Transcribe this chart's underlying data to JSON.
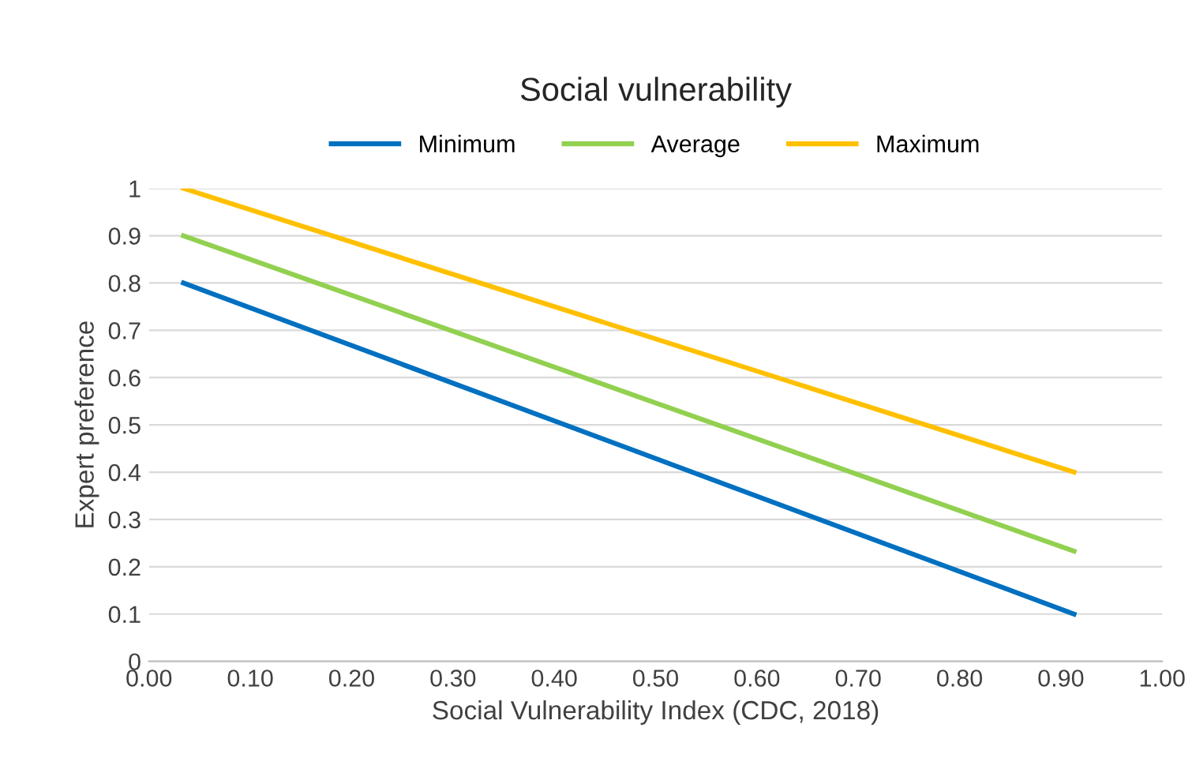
{
  "chart_data": {
    "type": "line",
    "title": "Social vulnerability",
    "xlabel": "Social Vulnerability Index (CDC, 2018)",
    "ylabel": "Expert preference",
    "x": [
      0.034,
      0.913
    ],
    "series": [
      {
        "name": "Minimum",
        "color": "#0070c0",
        "values": [
          0.8,
          0.1
        ]
      },
      {
        "name": "Average",
        "color": "#92d050",
        "values": [
          0.9,
          0.233
        ]
      },
      {
        "name": "Maximum",
        "color": "#ffc000",
        "values": [
          1.0,
          0.4
        ]
      }
    ],
    "xlim": [
      0,
      1
    ],
    "xticks": [
      {
        "value": 0,
        "label": "0.00"
      },
      {
        "value": 0.1,
        "label": "0.10"
      },
      {
        "value": 0.2,
        "label": "0.20"
      },
      {
        "value": 0.3,
        "label": "0.30"
      },
      {
        "value": 0.4,
        "label": "0.40"
      },
      {
        "value": 0.5,
        "label": "0.50"
      },
      {
        "value": 0.6,
        "label": "0.60"
      },
      {
        "value": 0.7,
        "label": "0.70"
      },
      {
        "value": 0.8,
        "label": "0.80"
      },
      {
        "value": 0.9,
        "label": "0.90"
      },
      {
        "value": 1,
        "label": "1.00"
      }
    ],
    "ylim": [
      0,
      1
    ],
    "yticks": [
      0,
      0.1,
      0.2,
      0.3,
      0.4,
      0.5,
      0.6,
      0.7,
      0.8,
      0.9,
      1
    ],
    "grid": "y",
    "legend": "top",
    "marker": "none",
    "line_style": "solid"
  }
}
